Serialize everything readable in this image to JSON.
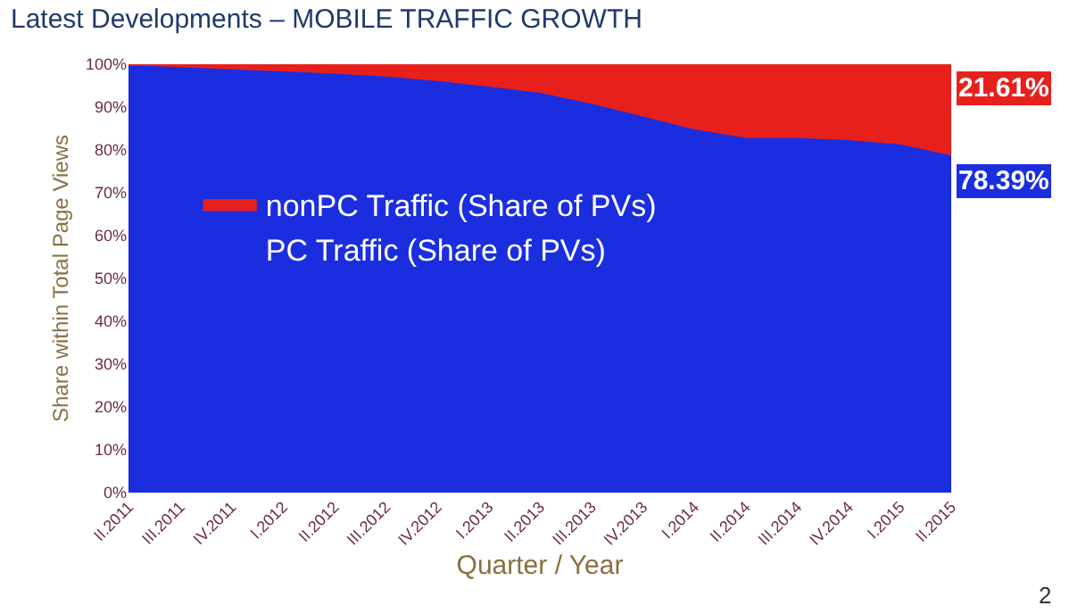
{
  "chart_data": {
    "type": "area",
    "stacked": true,
    "title": "Latest Developments – MOBILE TRAFFIC GROWTH",
    "xlabel": "Quarter / Year",
    "ylabel": "Share within Total Page Views",
    "categories": [
      "II.2011",
      "III.2011",
      "IV.2011",
      "I.2012",
      "II.2012",
      "III.2012",
      "IV.2012",
      "I.2013",
      "II.2013",
      "III.2013",
      "IV.2013",
      "I.2014",
      "II.2014",
      "III.2014",
      "IV.2014",
      "I.2015",
      "II.2015"
    ],
    "series": [
      {
        "name": "PC Traffic (Share of PVs)",
        "color": "#1a2ee0",
        "values": [
          99.5,
          99,
          98.5,
          98,
          97.5,
          96.8,
          95.8,
          94.5,
          93,
          90.5,
          87.5,
          84.5,
          82.5,
          82.5,
          82,
          81,
          78.39
        ],
        "value_labels": [
          null,
          null,
          null,
          null,
          null,
          null,
          null,
          null,
          null,
          null,
          null,
          null,
          null,
          null,
          null,
          null,
          "78.39%"
        ]
      },
      {
        "name": "nonPC Traffic (Share of PVs)",
        "color": "#e8201c",
        "values": [
          0.5,
          1,
          1.5,
          2,
          2.5,
          3.2,
          4.2,
          5.5,
          7,
          9.5,
          12.5,
          15.5,
          17.5,
          17.5,
          18,
          19,
          21.61
        ],
        "value_labels": [
          null,
          null,
          null,
          null,
          null,
          null,
          null,
          null,
          null,
          null,
          null,
          null,
          null,
          null,
          null,
          null,
          "21.61%"
        ]
      }
    ],
    "ylim": [
      0,
      100
    ],
    "yticks": [
      {
        "value": 0,
        "label": "0%"
      },
      {
        "value": 10,
        "label": "10%"
      },
      {
        "value": 20,
        "label": "20%"
      },
      {
        "value": 30,
        "label": "30%"
      },
      {
        "value": 40,
        "label": "40%"
      },
      {
        "value": 50,
        "label": "50%"
      },
      {
        "value": 60,
        "label": "60%"
      },
      {
        "value": 70,
        "label": "70%"
      },
      {
        "value": 80,
        "label": "80%"
      },
      {
        "value": 90,
        "label": "90%"
      },
      {
        "value": 100,
        "label": "100%"
      }
    ],
    "legend": "left",
    "annotations": [
      "2"
    ]
  }
}
